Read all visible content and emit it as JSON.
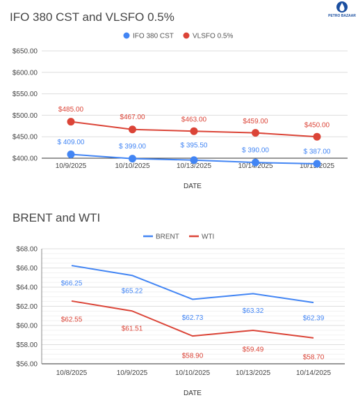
{
  "logo": {
    "text": "PETRO BAZAAR",
    "color": "#1b4fa0"
  },
  "chart_data": [
    {
      "type": "scatter",
      "title": "IFO 380 CST and VLSFO 0.5%",
      "xlabel": "DATE",
      "ylabel": "",
      "categories": [
        "10/9/2025",
        "10/10/2025",
        "10/13/2025",
        "10/14/2025",
        "10/15/2025"
      ],
      "ylim": [
        400,
        650
      ],
      "yticks": [
        "$650.00",
        "$600.00",
        "$550.00",
        "$500.00",
        "$450.00",
        "$400.00"
      ],
      "ytick_values": [
        650,
        600,
        550,
        500,
        450,
        400
      ],
      "grid": true,
      "legend": "top",
      "series": [
        {
          "name": "IFO 380 CST",
          "color": "#4285f4",
          "values": [
            409,
            399,
            395.5,
            390,
            387
          ],
          "labels": [
            "$ 409.00",
            "$ 399.00",
            "$ 395.50",
            "$ 390.00",
            "$ 387.00"
          ]
        },
        {
          "name": "VLSFO 0.5%",
          "color": "#db4437",
          "values": [
            485,
            467,
            463,
            459,
            450
          ],
          "labels": [
            "$485.00",
            "$467.00",
            "$463.00",
            "$459.00",
            "$450.00"
          ]
        }
      ]
    },
    {
      "type": "line",
      "title": "BRENT and WTI",
      "xlabel": "DATE",
      "ylabel": "",
      "categories": [
        "10/8/2025",
        "10/9/2025",
        "10/10/2025",
        "10/13/2025",
        "10/14/2025"
      ],
      "ylim": [
        56,
        68
      ],
      "yticks": [
        "$68.00",
        "$66.00",
        "$64.00",
        "$62.00",
        "$60.00",
        "$58.00",
        "$56.00"
      ],
      "ytick_values": [
        68,
        66,
        64,
        62,
        60,
        58,
        56
      ],
      "grid": true,
      "legend": "top",
      "series": [
        {
          "name": "BRENT",
          "color": "#4285f4",
          "values": [
            66.25,
            65.22,
            62.73,
            63.32,
            62.39
          ],
          "labels": [
            "$66.25",
            "$65.22",
            "$62.73",
            "$63.32",
            "$62.39"
          ]
        },
        {
          "name": "WTI",
          "color": "#db4437",
          "values": [
            62.55,
            61.51,
            58.9,
            59.49,
            58.7
          ],
          "labels": [
            "$62.55",
            "$61.51",
            "$58.90",
            "$59.49",
            "$58.70"
          ]
        }
      ]
    }
  ]
}
